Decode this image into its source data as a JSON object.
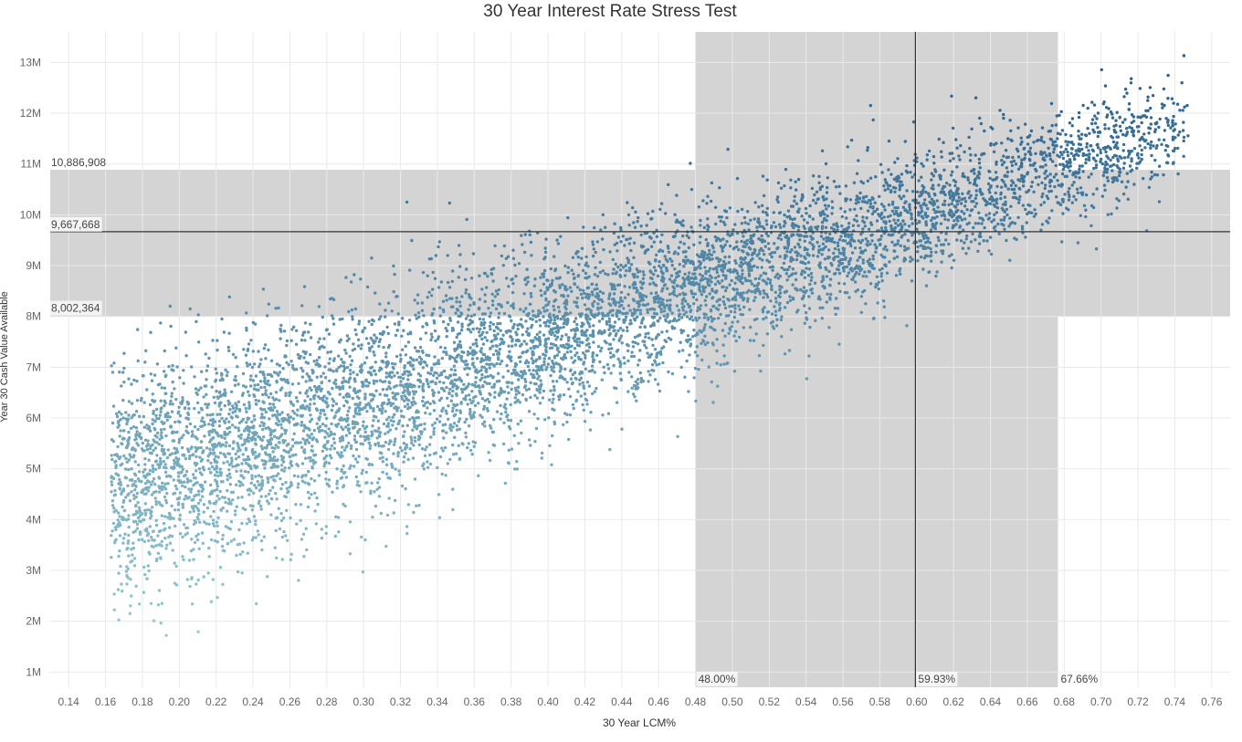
{
  "chart_data": {
    "type": "scatter",
    "title": "30 Year Interest Rate Stress Test",
    "xlabel": "30 Year LCM%",
    "ylabel": "Year 30 Cash Value Available",
    "xlim": [
      0.13,
      0.77
    ],
    "ylim": [
      700000,
      13600000
    ],
    "x_ticks": [
      0.14,
      0.16,
      0.18,
      0.2,
      0.22,
      0.24,
      0.26,
      0.28,
      0.3,
      0.32,
      0.34,
      0.36,
      0.38,
      0.4,
      0.42,
      0.44,
      0.46,
      0.48,
      0.5,
      0.52,
      0.54,
      0.56,
      0.58,
      0.6,
      0.62,
      0.64,
      0.66,
      0.68,
      0.7,
      0.72,
      0.74,
      0.76
    ],
    "x_tick_labels": [
      "0.14",
      "0.16",
      "0.18",
      "0.20",
      "0.22",
      "0.24",
      "0.26",
      "0.28",
      "0.30",
      "0.32",
      "0.34",
      "0.36",
      "0.38",
      "0.40",
      "0.42",
      "0.44",
      "0.46",
      "0.48",
      "0.50",
      "0.52",
      "0.54",
      "0.56",
      "0.58",
      "0.60",
      "0.62",
      "0.64",
      "0.66",
      "0.68",
      "0.70",
      "0.72",
      "0.74",
      "0.76"
    ],
    "y_ticks": [
      1000000,
      2000000,
      3000000,
      4000000,
      5000000,
      6000000,
      7000000,
      8000000,
      9000000,
      10000000,
      11000000,
      12000000,
      13000000
    ],
    "y_tick_labels": [
      "1M",
      "2M",
      "3M",
      "4M",
      "5M",
      "6M",
      "7M",
      "8M",
      "9M",
      "10M",
      "11M",
      "12M",
      "13M"
    ],
    "grid": true,
    "reference_lines": {
      "x_band": {
        "from": 0.48,
        "to": 0.6766,
        "from_label": "48.00%",
        "to_label": "67.66%"
      },
      "x_line": {
        "value": 0.5993,
        "label": "59.93%"
      },
      "y_band": {
        "from": 8002364,
        "to": 10886908,
        "from_label": "8,002,364",
        "to_label": "10,886,908"
      },
      "y_line": {
        "value": 9667668,
        "label": "9,667,668"
      }
    },
    "series": [
      {
        "point_count": 7000,
        "trend": {
          "y_at_x_min": 4600000,
          "y_at_x_max": 11800000,
          "x_min": 0.163,
          "x_max": 0.748
        },
        "color_low": "#9fd3d6",
        "color_high": "#2a5f8c"
      }
    ]
  },
  "colors": {
    "band": "#d4d4d4",
    "grid": "#e9e9e9",
    "reference_line": "#333333",
    "axis_text": "#666666"
  }
}
